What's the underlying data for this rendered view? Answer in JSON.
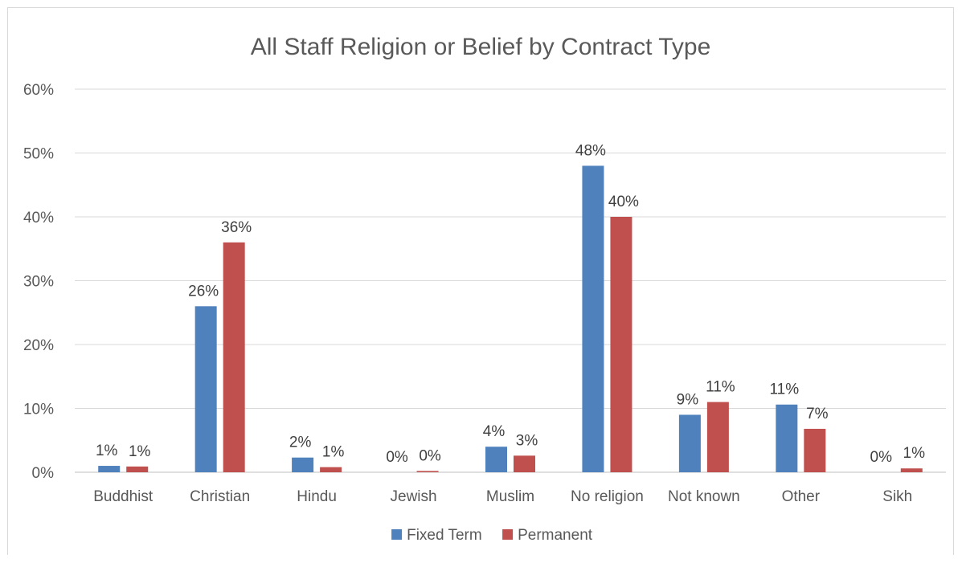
{
  "chart_data": {
    "type": "bar",
    "title": "All Staff Religion or Belief by Contract Type",
    "xlabel": "",
    "ylabel": "",
    "ylim": [
      0,
      0.6
    ],
    "y_ticks": [
      "0%",
      "10%",
      "20%",
      "30%",
      "40%",
      "50%",
      "60%"
    ],
    "grid": true,
    "legend_position": "bottom",
    "categories": [
      "Buddhist",
      "Christian",
      "Hindu",
      "Jewish",
      "Muslim",
      "No religion",
      "Not known",
      "Other",
      "Sikh"
    ],
    "series": [
      {
        "name": "Fixed Term",
        "color": "#4f81bd",
        "values": [
          0.01,
          0.26,
          0.023,
          0.0,
          0.04,
          0.48,
          0.09,
          0.106,
          0.0
        ],
        "labels": [
          "1%",
          "26%",
          "2%",
          "0%",
          "4%",
          "48%",
          "9%",
          "11%",
          "0%"
        ]
      },
      {
        "name": "Permanent",
        "color": "#c0504d",
        "values": [
          0.009,
          0.36,
          0.008,
          0.002,
          0.026,
          0.4,
          0.11,
          0.068,
          0.006
        ],
        "labels": [
          "1%",
          "36%",
          "1%",
          "0%",
          "3%",
          "40%",
          "11%",
          "7%",
          "1%"
        ]
      }
    ]
  }
}
